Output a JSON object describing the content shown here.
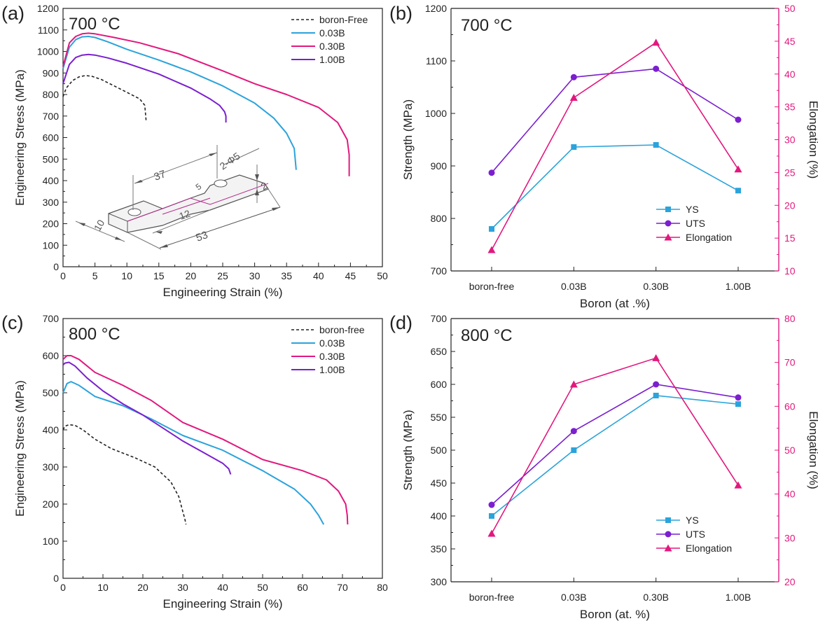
{
  "chart_data": [
    {
      "panel": "(a)",
      "type": "line",
      "temperature": "700 °C",
      "xlabel": "Engineering Strain (%)",
      "ylabel": "Engineering Stress (MPa)",
      "xlim": [
        0,
        50
      ],
      "ylim": [
        0,
        1200
      ],
      "xticks": [
        0,
        5,
        10,
        15,
        20,
        25,
        30,
        35,
        40,
        45,
        50
      ],
      "yticks": [
        0,
        100,
        200,
        300,
        400,
        500,
        600,
        700,
        800,
        900,
        1000,
        1100,
        1200
      ],
      "legend_position": "top-right",
      "series": [
        {
          "name": "boron-Free",
          "color": "#222222",
          "dashed": true,
          "x": [
            0,
            0.5,
            1.5,
            2.5,
            3.5,
            4.5,
            6,
            8,
            10,
            12,
            12.8,
            13
          ],
          "y": [
            790,
            830,
            865,
            882,
            888,
            885,
            870,
            840,
            810,
            780,
            750,
            680
          ]
        },
        {
          "name": "0.03B",
          "color": "#2ba3db",
          "dashed": false,
          "x": [
            0,
            1,
            2,
            3,
            4,
            5,
            7,
            10,
            15,
            20,
            25,
            30,
            33,
            35,
            36.2,
            36.5
          ],
          "y": [
            920,
            1020,
            1055,
            1068,
            1070,
            1065,
            1045,
            1010,
            960,
            905,
            840,
            760,
            690,
            620,
            550,
            450
          ]
        },
        {
          "name": "0.30B",
          "color": "#e2187e",
          "dashed": false,
          "x": [
            0,
            1,
            2,
            3,
            4,
            5,
            8,
            12,
            18,
            25,
            30,
            35,
            40,
            43,
            44.5,
            44.8,
            44.8
          ],
          "y": [
            930,
            1040,
            1070,
            1082,
            1085,
            1082,
            1065,
            1040,
            990,
            910,
            850,
            800,
            740,
            670,
            590,
            520,
            420
          ]
        },
        {
          "name": "1.00B",
          "color": "#7b1fcf",
          "dashed": false,
          "x": [
            0,
            1,
            2,
            3,
            4,
            5,
            7,
            10,
            15,
            20,
            23,
            24.5,
            25.3,
            25.5,
            25.5
          ],
          "y": [
            850,
            940,
            972,
            983,
            986,
            983,
            970,
            945,
            895,
            830,
            780,
            750,
            720,
            700,
            670
          ]
        }
      ],
      "inset_dimensions": [
        "37",
        "2-Φ5",
        "5",
        "2",
        "10",
        "12",
        "53"
      ]
    },
    {
      "panel": "(b)",
      "type": "line",
      "temperature": "700 °C",
      "xlabel": "Boron (at .%)",
      "ylabel": "Strength (MPa)",
      "y2label": "Elongation (%)",
      "categories": [
        "boron-free",
        "0.03B",
        "0.30B",
        "1.00B"
      ],
      "ylim": [
        700,
        1200
      ],
      "yticks": [
        700,
        800,
        900,
        1000,
        1100,
        1200
      ],
      "y2lim": [
        10,
        50
      ],
      "y2ticks": [
        10,
        15,
        20,
        25,
        30,
        35,
        40,
        45,
        50
      ],
      "legend_position": "bottom-right",
      "series": [
        {
          "name": "YS",
          "axis": "left",
          "color": "#2ba3db",
          "marker": "square",
          "values": [
            780,
            936,
            940,
            853
          ]
        },
        {
          "name": "UTS",
          "axis": "left",
          "color": "#7b1fcf",
          "marker": "circle",
          "values": [
            887,
            1069,
            1085,
            988
          ]
        },
        {
          "name": "Elongation",
          "axis": "right",
          "color": "#e2187e",
          "marker": "triangle",
          "values": [
            13.2,
            36.4,
            44.8,
            25.5
          ]
        }
      ]
    },
    {
      "panel": "(c)",
      "type": "line",
      "temperature": "800 °C",
      "xlabel": "Engineering Strain  (%)",
      "ylabel": "Engineering Stress (MPa)",
      "xlim": [
        0,
        80
      ],
      "ylim": [
        0,
        700
      ],
      "xticks": [
        0,
        10,
        20,
        30,
        40,
        50,
        60,
        70,
        80
      ],
      "yticks": [
        0,
        100,
        200,
        300,
        400,
        500,
        600,
        700
      ],
      "legend_position": "top-right",
      "series": [
        {
          "name": "boron-free",
          "color": "#222222",
          "dashed": true,
          "x": [
            0,
            0.5,
            1.5,
            3,
            5,
            8,
            12,
            18,
            23,
            27,
            29,
            30,
            30.5,
            30.8
          ],
          "y": [
            400,
            410,
            414,
            412,
            400,
            375,
            350,
            325,
            300,
            260,
            220,
            180,
            160,
            145
          ]
        },
        {
          "name": "0.03B",
          "color": "#2ba3db",
          "dashed": false,
          "x": [
            0,
            1,
            2,
            4,
            8,
            15,
            22,
            30,
            40,
            50,
            58,
            62,
            64,
            65.3
          ],
          "y": [
            500,
            525,
            530,
            520,
            490,
            465,
            430,
            385,
            345,
            290,
            240,
            200,
            170,
            145
          ]
        },
        {
          "name": "0.30B",
          "color": "#e2187e",
          "dashed": false,
          "x": [
            0,
            1,
            2,
            4,
            8,
            15,
            22,
            30,
            40,
            50,
            60,
            66,
            69,
            70.8,
            71.2,
            71.3
          ],
          "y": [
            590,
            600,
            600,
            590,
            555,
            520,
            480,
            420,
            375,
            320,
            290,
            265,
            235,
            200,
            170,
            145
          ]
        },
        {
          "name": "1.00B",
          "color": "#7b1fcf",
          "dashed": false,
          "x": [
            0,
            0.5,
            1.5,
            3,
            6,
            10,
            15,
            20,
            25,
            30,
            35,
            40,
            41.5,
            42
          ],
          "y": [
            575,
            580,
            582,
            572,
            540,
            505,
            470,
            440,
            405,
            370,
            340,
            310,
            295,
            280
          ]
        }
      ]
    },
    {
      "panel": "(d)",
      "type": "line",
      "temperature": "800 °C",
      "xlabel": "Boron (at. %)",
      "ylabel": "Strength (MPa)",
      "y2label": "Elongation (%)",
      "categories": [
        "boron-free",
        "0.03B",
        "0.30B",
        "1.00B"
      ],
      "ylim": [
        300,
        700
      ],
      "yticks": [
        300,
        350,
        400,
        450,
        500,
        550,
        600,
        650,
        700
      ],
      "y2lim": [
        20,
        80
      ],
      "y2ticks": [
        20,
        30,
        40,
        50,
        60,
        70,
        80
      ],
      "legend_position": "bottom-right",
      "series": [
        {
          "name": "YS",
          "axis": "left",
          "color": "#2ba3db",
          "marker": "square",
          "values": [
            400,
            500,
            583,
            570
          ]
        },
        {
          "name": "UTS",
          "axis": "left",
          "color": "#7b1fcf",
          "marker": "circle",
          "values": [
            417,
            529,
            600,
            580
          ]
        },
        {
          "name": "Elongation",
          "axis": "right",
          "color": "#e2187e",
          "marker": "triangle",
          "values": [
            31,
            65,
            71,
            42
          ]
        }
      ]
    }
  ]
}
